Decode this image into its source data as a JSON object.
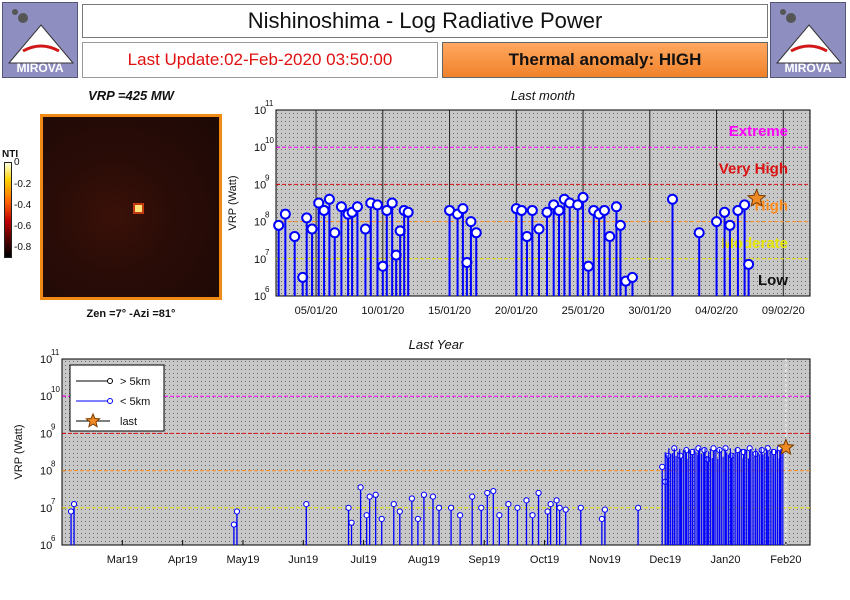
{
  "header": {
    "title": "Nishinoshima - Log Radiative Power",
    "last_update": "Last Update:02-Feb-2020 03:50:00",
    "thermal_anomaly": "Thermal anomaly:  HIGH",
    "logo_text": "MIROVA"
  },
  "thermal_image": {
    "vrp_label": "VRP =425 MW",
    "zen_azi_label": "Zen =7° -Azi =81°",
    "colorbar_title": "NTI",
    "colorbar_ticks": [
      "0",
      "-0.2",
      "-0.4",
      "-0.6",
      "-0.8"
    ],
    "colorbar_range": [
      -1,
      0
    ]
  },
  "colors": {
    "extreme": "#ff00ff",
    "very_high": "#dd1111",
    "high": "#ff8c1a",
    "moderate": "#e6e600",
    "low": "#111111",
    "stem_near": "#0000ff",
    "stem_far": "#000000",
    "last_star": "#f08a24"
  },
  "chart_data": [
    {
      "type": "scatter",
      "title": "Last month",
      "ylabel": "VRP (Watt)",
      "y_scale": "log",
      "ylim_exp": [
        6,
        11
      ],
      "x_range_days": [
        -3,
        37
      ],
      "x_ticks": [
        {
          "label": "05/01/20",
          "day": 0
        },
        {
          "label": "10/01/20",
          "day": 5
        },
        {
          "label": "15/01/20",
          "day": 10
        },
        {
          "label": "20/01/20",
          "day": 15
        },
        {
          "label": "25/01/20",
          "day": 20
        },
        {
          "label": "30/01/20",
          "day": 25
        },
        {
          "label": "04/02/20",
          "day": 30
        },
        {
          "label": "09/02/20",
          "day": 35
        }
      ],
      "thresholds": [
        {
          "label": "Extreme",
          "exp": 10,
          "color": "#ff00ff"
        },
        {
          "label": "Very High",
          "exp": 9,
          "color": "#dd1111"
        },
        {
          "label": "High",
          "exp": 8,
          "color": "#ff8c1a"
        },
        {
          "label": "Moderate",
          "exp": 7,
          "color": "#e6e600"
        },
        {
          "label": "Low",
          "exp": 6,
          "color": "#111111"
        }
      ],
      "series": [
        {
          "name": "< 5km",
          "points": [
            [
              -2.8,
              7.9
            ],
            [
              -2.3,
              8.2
            ],
            [
              -1.6,
              7.6
            ],
            [
              -1.0,
              6.5
            ],
            [
              -0.7,
              8.1
            ],
            [
              -0.3,
              7.8
            ],
            [
              0.2,
              8.5
            ],
            [
              0.6,
              8.3
            ],
            [
              1.0,
              8.6
            ],
            [
              1.4,
              7.7
            ],
            [
              1.9,
              8.4
            ],
            [
              2.4,
              8.2
            ],
            [
              2.7,
              8.25
            ],
            [
              3.1,
              8.4
            ],
            [
              3.7,
              7.8
            ],
            [
              4.1,
              8.5
            ],
            [
              4.6,
              8.45
            ],
            [
              5.0,
              6.8
            ],
            [
              5.3,
              8.3
            ],
            [
              5.7,
              8.5
            ],
            [
              6.0,
              7.1
            ],
            [
              6.3,
              7.75
            ],
            [
              6.6,
              8.3
            ],
            [
              6.9,
              8.25
            ],
            [
              10.0,
              8.3
            ],
            [
              10.6,
              8.2
            ],
            [
              11.0,
              8.35
            ],
            [
              11.3,
              6.9
            ],
            [
              11.6,
              8.0
            ],
            [
              12.0,
              7.7
            ],
            [
              15.0,
              8.35
            ],
            [
              15.4,
              8.3
            ],
            [
              15.8,
              7.6
            ],
            [
              16.2,
              8.3
            ],
            [
              16.7,
              7.8
            ],
            [
              17.3,
              8.25
            ],
            [
              17.8,
              8.45
            ],
            [
              18.2,
              8.3
            ],
            [
              18.6,
              8.6
            ],
            [
              19.0,
              8.5
            ],
            [
              19.6,
              8.45
            ],
            [
              20.0,
              8.65
            ],
            [
              20.4,
              6.8
            ],
            [
              20.8,
              8.3
            ],
            [
              21.2,
              8.2
            ],
            [
              21.6,
              8.3
            ],
            [
              22.0,
              7.6
            ],
            [
              22.5,
              8.4
            ],
            [
              22.8,
              7.9
            ],
            [
              23.2,
              6.4
            ],
            [
              23.7,
              6.5
            ],
            [
              26.7,
              8.6
            ],
            [
              28.7,
              7.7
            ],
            [
              30.0,
              8.0
            ],
            [
              30.6,
              8.25
            ],
            [
              31.0,
              7.9
            ],
            [
              31.6,
              8.3
            ],
            [
              32.1,
              8.45
            ],
            [
              32.4,
              6.85
            ]
          ]
        },
        {
          "name": "> 5km",
          "points": []
        },
        {
          "name": "last",
          "points": [
            [
              33.0,
              8.62
            ]
          ]
        }
      ]
    },
    {
      "type": "scatter",
      "title": "Last Year",
      "ylabel": "VRP (Watt)",
      "y_scale": "log",
      "ylim_exp": [
        6,
        11
      ],
      "x_range_months": [
        0,
        12.4
      ],
      "x_ticks": [
        {
          "label": "Mar19",
          "m": 1
        },
        {
          "label": "Apr19",
          "m": 2
        },
        {
          "label": "May19",
          "m": 3
        },
        {
          "label": "Jun19",
          "m": 4
        },
        {
          "label": "Jul19",
          "m": 5
        },
        {
          "label": "Aug19",
          "m": 6
        },
        {
          "label": "Sep19",
          "m": 7
        },
        {
          "label": "Oct19",
          "m": 8
        },
        {
          "label": "Nov19",
          "m": 9
        },
        {
          "label": "Dec19",
          "m": 10
        },
        {
          "label": "Jan20",
          "m": 11
        },
        {
          "label": "Feb20",
          "m": 12
        }
      ],
      "thresholds_exp": [
        10,
        9,
        8,
        7
      ],
      "legend": [
        "> 5km",
        "< 5km",
        "last"
      ],
      "series": [
        {
          "name": "> 5km",
          "points": []
        },
        {
          "name": "< 5km",
          "points": [
            [
              0.15,
              6.9
            ],
            [
              0.2,
              7.1
            ],
            [
              2.85,
              6.55
            ],
            [
              2.9,
              6.9
            ],
            [
              4.05,
              7.1
            ],
            [
              4.75,
              7.0
            ],
            [
              4.8,
              6.6
            ],
            [
              4.95,
              7.55
            ],
            [
              5.05,
              6.8
            ],
            [
              5.1,
              7.3
            ],
            [
              5.2,
              7.35
            ],
            [
              5.3,
              6.7
            ],
            [
              5.5,
              7.1
            ],
            [
              5.6,
              6.9
            ],
            [
              5.8,
              7.25
            ],
            [
              5.9,
              6.7
            ],
            [
              6.0,
              7.35
            ],
            [
              6.15,
              7.3
            ],
            [
              6.25,
              7.0
            ],
            [
              6.45,
              7.0
            ],
            [
              6.6,
              6.8
            ],
            [
              6.8,
              7.3
            ],
            [
              6.95,
              7.0
            ],
            [
              7.05,
              7.4
            ],
            [
              7.15,
              7.45
            ],
            [
              7.25,
              6.8
            ],
            [
              7.4,
              7.1
            ],
            [
              7.55,
              7.0
            ],
            [
              7.7,
              7.2
            ],
            [
              7.8,
              6.8
            ],
            [
              7.9,
              7.4
            ],
            [
              8.05,
              6.9
            ],
            [
              8.1,
              7.1
            ],
            [
              8.2,
              7.2
            ],
            [
              8.25,
              7.0
            ],
            [
              8.35,
              6.95
            ],
            [
              8.6,
              7.0
            ],
            [
              8.95,
              6.7
            ],
            [
              9.0,
              6.95
            ],
            [
              9.55,
              7.0
            ],
            [
              9.95,
              8.1
            ],
            [
              10.0,
              7.7
            ],
            [
              10.05,
              8.4
            ],
            [
              10.15,
              8.6
            ],
            [
              10.25,
              8.4
            ],
            [
              10.35,
              8.55
            ],
            [
              10.45,
              8.5
            ],
            [
              10.55,
              8.6
            ],
            [
              10.65,
              8.55
            ],
            [
              10.7,
              8.3
            ],
            [
              10.8,
              8.6
            ],
            [
              10.9,
              8.55
            ],
            [
              11.0,
              8.6
            ],
            [
              11.1,
              8.4
            ],
            [
              11.2,
              8.55
            ],
            [
              11.3,
              8.5
            ],
            [
              11.4,
              8.6
            ],
            [
              11.5,
              8.45
            ],
            [
              11.6,
              8.55
            ],
            [
              11.7,
              8.6
            ],
            [
              11.8,
              8.5
            ],
            [
              11.9,
              8.6
            ]
          ]
        },
        {
          "name": "last",
          "points": [
            [
              12.0,
              8.62
            ]
          ]
        }
      ]
    }
  ]
}
